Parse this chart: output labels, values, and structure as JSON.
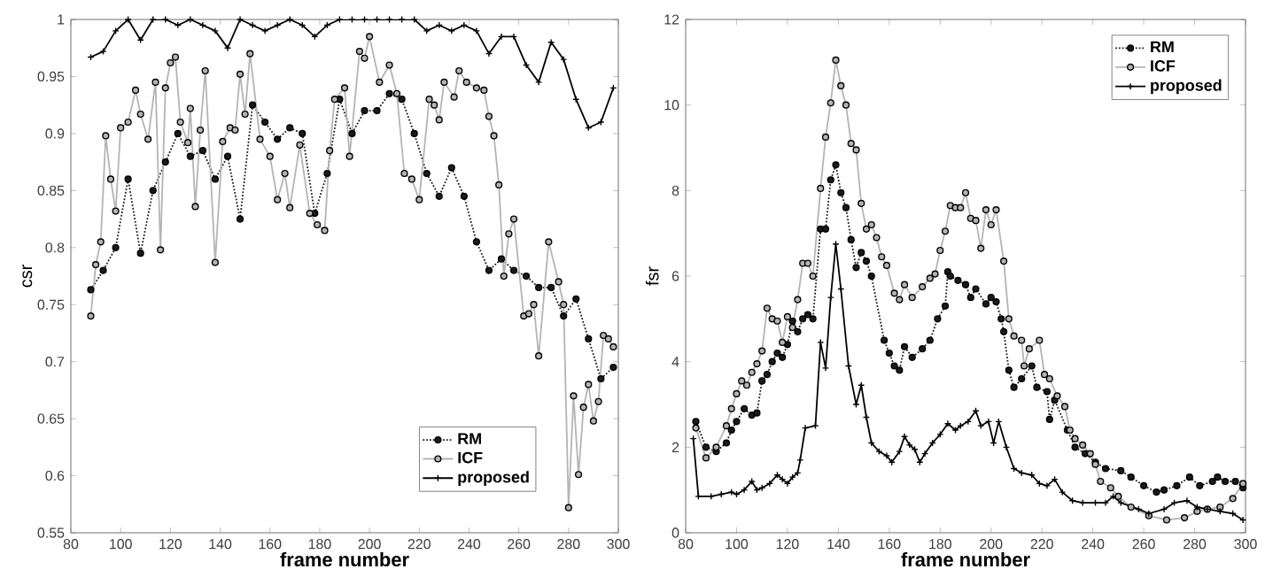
{
  "chart_data": [
    {
      "type": "line",
      "xlabel": "frame number",
      "ylabel": "csr",
      "xlim": [
        80,
        300
      ],
      "ylim": [
        0.55,
        1
      ],
      "xticks": [
        80,
        100,
        120,
        140,
        160,
        180,
        200,
        220,
        240,
        260,
        280,
        300
      ],
      "yticks": [
        0.55,
        0.6,
        0.65,
        0.7,
        0.75,
        0.8,
        0.85,
        0.9,
        0.95,
        1
      ],
      "legend": "bottom right",
      "grid": false,
      "series": [
        {
          "name": "RM",
          "color": "#1a1a1a",
          "marker": "circle",
          "line_style": "dotted",
          "x": [
            88,
            93,
            98,
            103,
            108,
            113,
            118,
            123,
            128,
            133,
            138,
            143,
            148,
            153,
            158,
            163,
            168,
            173,
            178,
            183,
            188,
            193,
            198,
            203,
            208,
            213,
            218,
            223,
            228,
            233,
            238,
            243,
            248,
            253,
            258,
            263,
            268,
            273,
            278,
            283,
            288,
            293,
            298
          ],
          "values": [
            0.763,
            0.78,
            0.8,
            0.86,
            0.795,
            0.85,
            0.875,
            0.9,
            0.88,
            0.885,
            0.86,
            0.88,
            0.825,
            0.925,
            0.91,
            0.895,
            0.905,
            0.9,
            0.83,
            0.865,
            0.93,
            0.9,
            0.92,
            0.92,
            0.935,
            0.93,
            0.9,
            0.865,
            0.845,
            0.87,
            0.845,
            0.805,
            0.78,
            0.79,
            0.78,
            0.775,
            0.765,
            0.765,
            0.74,
            0.755,
            0.72,
            0.685,
            0.695
          ]
        },
        {
          "name": "ICF",
          "color": "#b4b4b4",
          "marker": "circle",
          "line_style": "solid",
          "x": [
            88,
            90,
            92,
            94,
            96,
            98,
            100,
            103,
            106,
            108,
            111,
            114,
            116,
            118,
            120,
            122,
            124,
            127,
            128,
            130,
            132,
            134,
            138,
            141,
            144,
            146,
            148,
            150,
            152,
            156,
            160,
            163,
            166,
            168,
            172,
            176,
            179,
            182,
            184,
            186,
            190,
            192,
            196,
            198,
            200,
            204,
            208,
            211,
            214,
            217,
            220,
            224,
            226,
            228,
            230,
            234,
            236,
            239,
            243,
            246,
            248,
            250,
            252,
            254,
            256,
            258,
            262,
            264,
            266,
            268,
            272,
            276,
            278,
            280,
            282,
            284,
            286,
            288,
            290,
            292,
            294,
            296,
            298
          ],
          "values": [
            0.74,
            0.785,
            0.805,
            0.898,
            0.86,
            0.832,
            0.905,
            0.91,
            0.938,
            0.917,
            0.895,
            0.945,
            0.798,
            0.94,
            0.962,
            0.967,
            0.91,
            0.892,
            0.922,
            0.836,
            0.903,
            0.955,
            0.787,
            0.893,
            0.905,
            0.903,
            0.952,
            0.917,
            0.97,
            0.895,
            0.88,
            0.842,
            0.865,
            0.835,
            0.89,
            0.83,
            0.82,
            0.815,
            0.885,
            0.93,
            0.94,
            0.88,
            0.972,
            0.966,
            0.985,
            0.945,
            0.96,
            0.935,
            0.865,
            0.86,
            0.842,
            0.93,
            0.925,
            0.912,
            0.945,
            0.932,
            0.955,
            0.945,
            0.94,
            0.938,
            0.915,
            0.898,
            0.855,
            0.775,
            0.812,
            0.825,
            0.74,
            0.742,
            0.75,
            0.705,
            0.805,
            0.77,
            0.75,
            0.572,
            0.67,
            0.601,
            0.66,
            0.68,
            0.648,
            0.665,
            0.723,
            0.72,
            0.713
          ]
        },
        {
          "name": "proposed",
          "color": "#000000",
          "marker": "cross",
          "line_style": "solid",
          "x": [
            88,
            93,
            98,
            103,
            108,
            113,
            118,
            123,
            128,
            133,
            138,
            143,
            148,
            153,
            158,
            163,
            168,
            173,
            178,
            183,
            188,
            193,
            198,
            203,
            208,
            213,
            218,
            223,
            228,
            233,
            238,
            243,
            248,
            253,
            258,
            263,
            268,
            273,
            278,
            283,
            288,
            293,
            298
          ],
          "values": [
            0.967,
            0.972,
            0.99,
            1,
            0.982,
            1,
            1,
            0.995,
            1,
            0.995,
            0.99,
            0.975,
            1,
            0.995,
            0.99,
            0.995,
            1,
            0.995,
            0.985,
            0.995,
            1,
            1,
            1,
            1,
            1,
            1,
            1,
            0.99,
            0.995,
            0.99,
            0.995,
            0.99,
            0.97,
            0.985,
            0.985,
            0.96,
            0.945,
            0.98,
            0.965,
            0.93,
            0.905,
            0.91,
            0.94
          ]
        }
      ]
    },
    {
      "type": "line",
      "xlabel": "frame number",
      "ylabel": "fsr",
      "xlim": [
        80,
        300
      ],
      "ylim": [
        0,
        12
      ],
      "xticks": [
        80,
        100,
        120,
        140,
        160,
        180,
        200,
        220,
        240,
        260,
        280,
        300
      ],
      "yticks": [
        0,
        2,
        4,
        6,
        8,
        10,
        12
      ],
      "legend": "top right",
      "grid": false,
      "series": [
        {
          "name": "RM",
          "color": "#1a1a1a",
          "marker": "circle",
          "line_style": "dotted",
          "x": [
            84,
            88,
            92,
            96,
            98,
            100,
            103,
            106,
            108,
            110,
            112,
            114,
            116,
            118,
            120,
            122,
            124,
            126,
            128,
            130,
            133,
            135,
            137,
            139,
            141,
            143,
            145,
            147,
            149,
            151,
            153,
            158,
            160,
            162,
            164,
            166,
            169,
            173,
            176,
            179,
            182,
            183,
            184,
            187,
            190,
            192,
            194,
            198,
            200,
            202,
            204,
            205,
            207,
            209,
            212,
            216,
            218,
            222,
            223,
            225,
            230,
            233,
            237,
            241,
            245,
            251,
            255,
            260,
            265,
            268,
            273,
            278,
            282,
            287,
            289,
            292,
            296,
            299
          ],
          "values": [
            2.6,
            2.0,
            1.9,
            2.1,
            2.4,
            2.6,
            2.9,
            2.75,
            2.8,
            3.55,
            3.7,
            4.0,
            4.2,
            4.1,
            4.4,
            4.95,
            4.7,
            5.0,
            5.1,
            5.0,
            7.1,
            7.1,
            8.25,
            8.6,
            7.95,
            7.6,
            6.85,
            6.2,
            6.55,
            6.35,
            6.0,
            4.5,
            4.2,
            3.9,
            3.8,
            4.35,
            4.1,
            4.3,
            4.5,
            5.0,
            5.3,
            6.1,
            6.0,
            5.9,
            5.8,
            5.5,
            5.7,
            5.35,
            5.5,
            5.4,
            5.0,
            4.7,
            3.8,
            3.4,
            3.6,
            3.9,
            3.4,
            3.3,
            2.65,
            3.1,
            2.4,
            2.0,
            1.85,
            1.65,
            1.5,
            1.45,
            1.3,
            1.1,
            0.95,
            1.0,
            1.1,
            1.3,
            1.1,
            1.2,
            1.3,
            1.2,
            1.2,
            1.05
          ]
        },
        {
          "name": "ICF",
          "color": "#b4b4b4",
          "marker": "circle",
          "line_style": "solid",
          "x": [
            84,
            88,
            92,
            96,
            98,
            100,
            102,
            104,
            106,
            108,
            110,
            112,
            114,
            116,
            118,
            120,
            122,
            124,
            126,
            128,
            130,
            133,
            135,
            137,
            139,
            141,
            143,
            145,
            147,
            149,
            151,
            153,
            155,
            157,
            159,
            162,
            164,
            166,
            169,
            173,
            176,
            178,
            180,
            182,
            184,
            186,
            188,
            190,
            192,
            194,
            196,
            198,
            200,
            202,
            205,
            207,
            209,
            212,
            213,
            215,
            219,
            221,
            223,
            226,
            229,
            231,
            233,
            236,
            239,
            241,
            243,
            247,
            250,
            255,
            262,
            269,
            276,
            281,
            285,
            290,
            295,
            299
          ],
          "values": [
            2.45,
            1.75,
            2.0,
            2.5,
            2.9,
            3.25,
            3.55,
            3.45,
            3.75,
            3.95,
            4.25,
            5.25,
            5.0,
            4.95,
            4.45,
            5.05,
            4.8,
            5.45,
            6.3,
            6.3,
            6.0,
            8.05,
            9.25,
            10.05,
            11.05,
            10.45,
            10.0,
            9.1,
            8.95,
            7.7,
            7.1,
            7.2,
            6.9,
            6.45,
            6.25,
            5.6,
            5.45,
            5.8,
            5.5,
            5.75,
            5.95,
            6.05,
            6.6,
            7.05,
            7.65,
            7.6,
            7.6,
            7.95,
            7.35,
            7.3,
            6.65,
            7.55,
            7.2,
            7.55,
            6.35,
            5.0,
            4.6,
            4.5,
            3.9,
            4.3,
            4.5,
            3.7,
            3.6,
            3.2,
            2.95,
            2.4,
            2.2,
            2.05,
            1.85,
            1.6,
            1.2,
            1.05,
            0.85,
            0.6,
            0.4,
            0.3,
            0.35,
            0.5,
            0.55,
            0.6,
            0.8,
            1.15
          ]
        },
        {
          "name": "proposed",
          "color": "#000000",
          "marker": "cross",
          "line_style": "solid",
          "x": [
            83,
            85,
            90,
            94,
            98,
            100,
            103,
            106,
            108,
            110,
            113,
            116,
            118,
            120,
            122,
            124,
            125,
            127,
            131,
            133,
            135,
            137,
            139,
            141,
            144,
            147,
            149,
            151,
            153,
            156,
            159,
            161,
            164,
            166,
            168,
            170,
            172,
            174,
            177,
            180,
            183,
            186,
            188,
            191,
            194,
            196,
            199,
            201,
            203,
            206,
            209,
            212,
            216,
            219,
            222,
            225,
            228,
            232,
            236,
            241,
            245,
            248,
            251,
            258,
            262,
            268,
            272,
            277,
            281,
            285,
            290,
            295,
            299
          ],
          "values": [
            2.2,
            0.85,
            0.85,
            0.9,
            0.95,
            0.9,
            1.0,
            1.2,
            1.0,
            1.05,
            1.15,
            1.35,
            1.25,
            1.15,
            1.3,
            1.4,
            1.7,
            2.45,
            2.5,
            4.45,
            3.85,
            5.5,
            6.75,
            5.7,
            3.9,
            3.0,
            3.45,
            2.7,
            2.1,
            1.9,
            1.8,
            1.65,
            1.9,
            2.25,
            2.05,
            1.95,
            1.65,
            1.85,
            2.1,
            2.3,
            2.55,
            2.4,
            2.5,
            2.6,
            2.85,
            2.5,
            2.6,
            2.1,
            2.6,
            2.0,
            1.5,
            1.4,
            1.35,
            1.15,
            1.1,
            1.25,
            0.95,
            0.75,
            0.7,
            0.7,
            0.7,
            0.85,
            0.7,
            0.55,
            0.45,
            0.55,
            0.7,
            0.75,
            0.6,
            0.55,
            0.5,
            0.45,
            0.3
          ]
        }
      ]
    }
  ]
}
